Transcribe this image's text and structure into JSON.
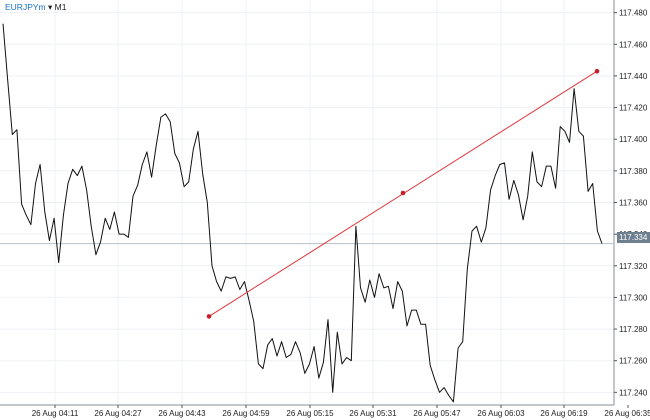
{
  "header": {
    "symbol": "EURJPYm",
    "dropdown_glyph": "▾",
    "timeframe": "M1"
  },
  "current_price_label": "117.334",
  "colors": {
    "price_line": "#111111",
    "trendline": "#e0343a",
    "trendline_anchor": "#c81e25",
    "grid": "#eef1f4",
    "price_tag_bg": "#6e7f8f"
  },
  "chart_data": {
    "type": "line",
    "y_ticks": [
      "117.240",
      "117.260",
      "117.280",
      "117.300",
      "117.320",
      "117.340",
      "117.360",
      "117.380",
      "117.400",
      "117.420",
      "117.440",
      "117.460",
      "117.480"
    ],
    "x_ticks": [
      "26 Aug 04:11",
      "26 Aug 04:27",
      "26 Aug 04:43",
      "26 Aug 04:59",
      "26 Aug 05:15",
      "26 Aug 05:31",
      "26 Aug 05:47",
      "26 Aug 06:03",
      "26 Aug 06:19",
      "26 Aug 06:35"
    ],
    "ylim": [
      117.232,
      117.488
    ],
    "current_price": 117.334,
    "series": [
      {
        "values": [
          117.473,
          117.438,
          117.403,
          117.406,
          117.359,
          117.352,
          117.346,
          117.372,
          117.384,
          117.354,
          117.336,
          117.35,
          117.322,
          117.352,
          117.372,
          117.381,
          117.377,
          117.383,
          117.368,
          117.345,
          117.327,
          117.335,
          117.35,
          117.343,
          117.354,
          117.34,
          117.34,
          117.338,
          117.364,
          117.371,
          117.384,
          117.392,
          117.376,
          117.396,
          117.414,
          117.416,
          117.411,
          117.391,
          117.385,
          117.37,
          117.373,
          117.394,
          117.405,
          117.378,
          117.36,
          117.32,
          117.31,
          117.304,
          117.313,
          117.312,
          117.313,
          117.305,
          117.31,
          117.298,
          117.285,
          117.258,
          117.255,
          117.27,
          117.274,
          117.263,
          117.272,
          117.262,
          117.264,
          117.272,
          117.265,
          117.252,
          117.258,
          117.269,
          117.249,
          117.259,
          117.286,
          117.24,
          117.278,
          117.258,
          117.262,
          117.26,
          117.345,
          117.306,
          117.297,
          117.311,
          117.3,
          117.315,
          117.306,
          117.307,
          117.293,
          117.31,
          117.304,
          117.282,
          117.292,
          117.292,
          117.283,
          117.283,
          117.257,
          117.248,
          117.24,
          117.243,
          117.238,
          117.234,
          117.268,
          117.272,
          117.318,
          117.342,
          117.345,
          117.335,
          117.344,
          117.368,
          117.377,
          117.384,
          117.385,
          117.362,
          117.374,
          117.365,
          117.349,
          117.364,
          117.392,
          117.373,
          117.37,
          117.383,
          117.383,
          117.369,
          117.408,
          117.405,
          117.398,
          117.432,
          117.405,
          117.402,
          117.367,
          117.372,
          117.342,
          117.334
        ]
      }
    ],
    "trendline": {
      "start": 117.288,
      "mid": 117.366,
      "end": 117.443
    }
  }
}
